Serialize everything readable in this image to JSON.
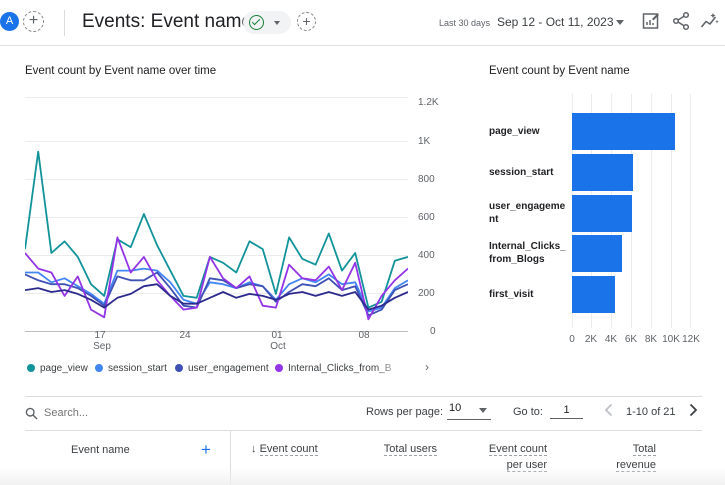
{
  "header": {
    "avatar_letter": "A",
    "add_comparison": "+",
    "title": "Events: Event name",
    "add_filter": "+",
    "range_label": "Last 30 days",
    "date_range": "Sep 12 - Oct 11, 2023",
    "icons": [
      "customize-report-icon",
      "share-icon",
      "insights-icon"
    ]
  },
  "line_chart": {
    "title": "Event count by Event name over time",
    "y_ticks": [
      "1.2K",
      "1K",
      "800",
      "600",
      "400",
      "200",
      "0"
    ],
    "x_ticks": [
      {
        "day": "17",
        "month": "Sep"
      },
      {
        "day": "24",
        "month": ""
      },
      {
        "day": "01",
        "month": "Oct"
      },
      {
        "day": "08",
        "month": ""
      }
    ],
    "legend": [
      "page_view",
      "session_start",
      "user_engagement",
      "Internal_Clicks_from_B"
    ],
    "legend_more": "›"
  },
  "bar_chart": {
    "title": "Event count by Event name",
    "x_ticks": [
      "0",
      "2K",
      "4K",
      "6K",
      "8K",
      "10K",
      "12K"
    ]
  },
  "chart_data": [
    {
      "type": "line",
      "title": "Event count by Event name over time",
      "x": [
        "2023-09-12",
        "2023-09-13",
        "2023-09-14",
        "2023-09-15",
        "2023-09-16",
        "2023-09-17",
        "2023-09-18",
        "2023-09-19",
        "2023-09-20",
        "2023-09-21",
        "2023-09-22",
        "2023-09-23",
        "2023-09-24",
        "2023-09-25",
        "2023-09-26",
        "2023-09-27",
        "2023-09-28",
        "2023-09-29",
        "2023-09-30",
        "2023-10-01",
        "2023-10-02",
        "2023-10-03",
        "2023-10-04",
        "2023-10-05",
        "2023-10-06",
        "2023-10-07",
        "2023-10-08",
        "2023-10-09",
        "2023-10-10",
        "2023-10-11"
      ],
      "ylim": [
        0,
        1200
      ],
      "grid": true,
      "legend": "bottom",
      "series": [
        {
          "name": "page_view",
          "color": "#12939a",
          "values": [
            420,
            920,
            400,
            460,
            380,
            240,
            180,
            470,
            430,
            600,
            440,
            310,
            180,
            170,
            380,
            350,
            300,
            460,
            420,
            190,
            480,
            370,
            340,
            500,
            310,
            400,
            120,
            150,
            360,
            380
          ]
        },
        {
          "name": "session_start",
          "color": "#4285f4",
          "values": [
            300,
            300,
            250,
            270,
            230,
            190,
            140,
            310,
            310,
            320,
            310,
            250,
            160,
            140,
            250,
            240,
            220,
            250,
            230,
            160,
            240,
            270,
            250,
            290,
            240,
            250,
            100,
            120,
            220,
            260
          ]
        },
        {
          "name": "user_engagement",
          "color": "#3f51b5",
          "values": [
            290,
            260,
            240,
            240,
            220,
            180,
            130,
            280,
            260,
            260,
            300,
            220,
            130,
            120,
            270,
            260,
            220,
            240,
            230,
            150,
            200,
            240,
            230,
            270,
            210,
            230,
            80,
            110,
            210,
            240
          ]
        },
        {
          "name": "Internal_Clicks_from_B",
          "color": "#9334e6",
          "values": [
            400,
            320,
            300,
            180,
            280,
            110,
            70,
            480,
            300,
            380,
            260,
            180,
            110,
            120,
            380,
            270,
            220,
            280,
            130,
            120,
            340,
            270,
            260,
            330,
            210,
            350,
            60,
            180,
            260,
            320
          ]
        },
        {
          "name": "",
          "color": "#2d2a8e",
          "values": [
            210,
            220,
            200,
            210,
            190,
            160,
            120,
            170,
            190,
            230,
            240,
            180,
            140,
            140,
            170,
            200,
            170,
            190,
            180,
            160,
            190,
            200,
            180,
            200,
            180,
            200,
            110,
            130,
            170,
            200
          ]
        }
      ]
    },
    {
      "type": "bar",
      "title": "Event count by Event name",
      "categories": [
        "page_view",
        "session_start",
        "user_engagement",
        "Internal_Clicks_from_Blogs",
        "first_visit"
      ],
      "category_labels": [
        [
          "page_view"
        ],
        [
          "session_start"
        ],
        [
          "user_engageme",
          "nt"
        ],
        [
          "Internal_Clicks_",
          "from_Blogs"
        ],
        [
          "first_visit"
        ]
      ],
      "values": [
        10500,
        6200,
        6100,
        5100,
        4400
      ],
      "xlim": [
        0,
        12000
      ],
      "color": "#1a73e8"
    }
  ],
  "table": {
    "search_placeholder": "Search...",
    "rows_per_page_label": "Rows per page:",
    "rows_per_page_value": "10",
    "goto_label": "Go to:",
    "goto_value": "1",
    "page_range": "1-10 of 21",
    "col_event_name": "Event name",
    "add_dimension": "+",
    "sort_arrow": "↓",
    "col_event_count": "Event count",
    "col_total_users": "Total users",
    "col_count_per_user_1": "Event count",
    "col_count_per_user_2": "per user",
    "col_revenue_1": "Total",
    "col_revenue_2": "revenue"
  }
}
